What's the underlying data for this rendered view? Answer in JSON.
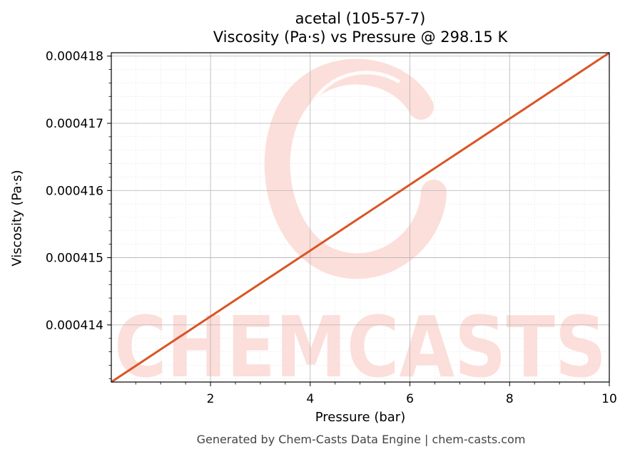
{
  "chart_data": {
    "type": "line",
    "title_line1": "acetal (105-57-7)",
    "title_line2": "Viscosity (Pa·s) vs Pressure @ 298.15 K",
    "xlabel": "Pressure (bar)",
    "ylabel": "Viscosity (Pa·s)",
    "xlim": [
      0.01,
      10
    ],
    "ylim": [
      0.00041315,
      0.00041805
    ],
    "x_ticks": [
      2,
      4,
      6,
      8,
      10
    ],
    "x_tick_labels": [
      "2",
      "4",
      "6",
      "8",
      "10"
    ],
    "y_ticks": [
      0.000414,
      0.000415,
      0.000416,
      0.000417,
      0.000418
    ],
    "y_tick_labels": [
      "0.000414",
      "0.000415",
      "0.000416",
      "0.000417",
      "0.000418"
    ],
    "grid": true,
    "series": [
      {
        "color": "#d95525",
        "x": [
          0.01,
          2,
          4,
          6,
          8,
          10
        ],
        "y": [
          0.00041315,
          0.000414126,
          0.000415106,
          0.000416087,
          0.000417068,
          0.00041805
        ]
      }
    ]
  },
  "watermark": {
    "text": "CHEMCASTS",
    "color": "#fcd9d4"
  },
  "footer": "Generated by Chem-Casts Data Engine | chem-casts.com"
}
